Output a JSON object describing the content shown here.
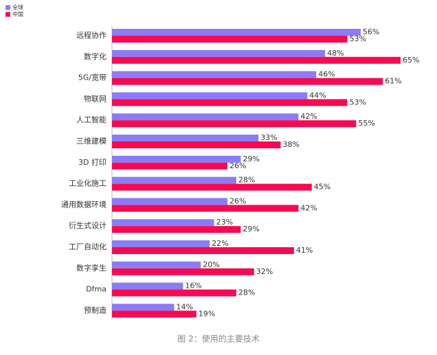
{
  "chart_data": {
    "type": "bar",
    "orientation": "horizontal",
    "caption": "图 2：使用的主要技术",
    "categories": [
      "远程协作",
      "数字化",
      "5G/宽带",
      "物联网",
      "人工智能",
      "三维建模",
      "3D 打印",
      "工业化施工",
      "通用数据环境",
      "衍生式设计",
      "工厂自动化",
      "数字孪生",
      "Dfma",
      "预制造"
    ],
    "series": [
      {
        "name": "全球",
        "color": "#8b7cf5",
        "values": [
          56,
          48,
          46,
          44,
          42,
          33,
          29,
          28,
          26,
          23,
          22,
          20,
          16,
          14
        ],
        "value_labels": [
          "56%",
          "48%",
          "46%",
          "44%",
          "42%",
          "33%",
          "29%",
          "28%",
          "26%",
          "23%",
          "22%",
          "20%",
          "16%",
          "14%"
        ]
      },
      {
        "name": "中国",
        "color": "#f70a52",
        "values": [
          53,
          65,
          61,
          53,
          55,
          38,
          26,
          45,
          42,
          29,
          41,
          32,
          28,
          19
        ],
        "value_labels": [
          "53%",
          "65%",
          "61%",
          "53%",
          "55%",
          "38%",
          "26%",
          "45%",
          "42%",
          "29%",
          "41%",
          "32%",
          "28%",
          "19%"
        ]
      }
    ],
    "legend": "top-left"
  }
}
